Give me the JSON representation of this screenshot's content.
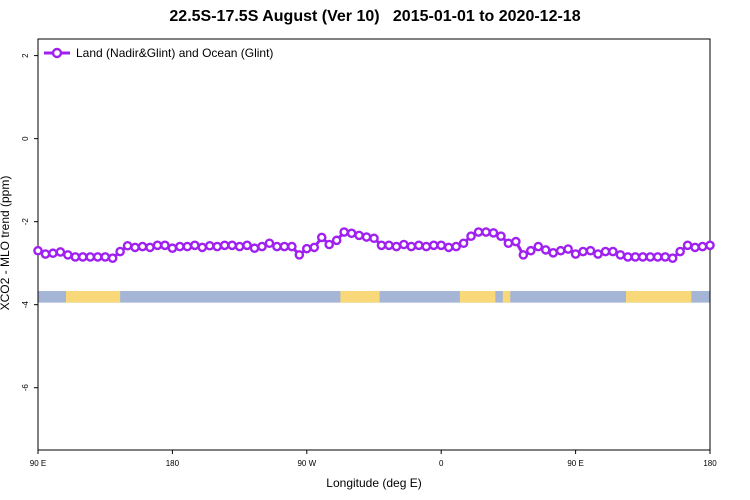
{
  "chart_data": {
    "type": "line",
    "title": "22.5S-17.5S August (Ver 10)   2015-01-01 to 2020-12-18",
    "xlabel": "Longitude (deg E)",
    "ylabel": "XCO2 - MLO trend (ppm)",
    "xlim": [
      90,
      450
    ],
    "ylim": [
      -7.5,
      2.4
    ],
    "x_ticks": [
      {
        "value": 90,
        "label": "90 E"
      },
      {
        "value": 162,
        "label": "180"
      },
      {
        "value": 234,
        "label": "90 W"
      },
      {
        "value": 306,
        "label": "0"
      },
      {
        "value": 378,
        "label": "90 E"
      },
      {
        "value": 450,
        "label": "180"
      }
    ],
    "y_ticks": [
      {
        "value": 2,
        "label": "2"
      },
      {
        "value": 0,
        "label": "0"
      },
      {
        "value": -2,
        "label": "-2"
      },
      {
        "value": -4,
        "label": "-4"
      },
      {
        "value": -6,
        "label": "-6"
      }
    ],
    "grid": false,
    "legend_position": "top-left",
    "series": [
      {
        "name": "Land (Nadir&Glint) and Ocean (Glint)",
        "color": "#a020f0",
        "marker": "open-circle",
        "x": [
          90,
          94,
          98,
          102,
          106,
          110,
          114,
          118,
          122,
          126,
          130,
          134,
          138,
          142,
          146,
          150,
          154,
          158,
          162,
          166,
          170,
          174,
          178,
          182,
          186,
          190,
          194,
          198,
          202,
          206,
          210,
          214,
          218,
          222,
          226,
          230,
          234,
          238,
          242,
          246,
          250,
          254,
          258,
          262,
          266,
          270,
          274,
          278,
          282,
          286,
          290,
          294,
          298,
          302,
          306,
          310,
          314,
          318,
          322,
          326,
          330,
          334,
          338,
          342,
          346,
          350,
          354,
          358,
          362,
          366,
          370,
          374,
          378,
          382,
          386,
          390,
          394,
          398,
          402,
          406,
          410,
          414,
          418,
          422,
          426,
          430,
          434,
          438,
          442,
          446,
          450
        ],
        "values": [
          -2.7,
          -2.78,
          -2.76,
          -2.73,
          -2.8,
          -2.85,
          -2.85,
          -2.85,
          -2.85,
          -2.85,
          -2.88,
          -2.72,
          -2.58,
          -2.62,
          -2.6,
          -2.62,
          -2.57,
          -2.57,
          -2.64,
          -2.6,
          -2.6,
          -2.57,
          -2.62,
          -2.58,
          -2.6,
          -2.57,
          -2.57,
          -2.6,
          -2.57,
          -2.64,
          -2.6,
          -2.52,
          -2.6,
          -2.6,
          -2.6,
          -2.8,
          -2.65,
          -2.62,
          -2.38,
          -2.55,
          -2.45,
          -2.25,
          -2.28,
          -2.33,
          -2.37,
          -2.4,
          -2.57,
          -2.57,
          -2.6,
          -2.55,
          -2.6,
          -2.57,
          -2.6,
          -2.57,
          -2.57,
          -2.62,
          -2.6,
          -2.52,
          -2.35,
          -2.25,
          -2.25,
          -2.27,
          -2.35,
          -2.52,
          -2.48,
          -2.8,
          -2.7,
          -2.6,
          -2.68,
          -2.75,
          -2.7,
          -2.66,
          -2.78,
          -2.72,
          -2.7,
          -2.78,
          -2.72,
          -2.72,
          -2.8,
          -2.85,
          -2.85,
          -2.85,
          -2.85,
          -2.85,
          -2.85,
          -2.88,
          -2.72,
          -2.57,
          -2.62,
          -2.6,
          -2.57
        ]
      }
    ],
    "surface_band": {
      "y_range": [
        -3.95,
        -3.67
      ],
      "ocean_color": "#a4b5d6",
      "land_color": "#f8d878",
      "land_segments": [
        [
          105,
          134
        ],
        [
          252,
          273
        ],
        [
          316,
          335
        ],
        [
          339,
          343
        ],
        [
          405,
          440
        ]
      ]
    }
  }
}
